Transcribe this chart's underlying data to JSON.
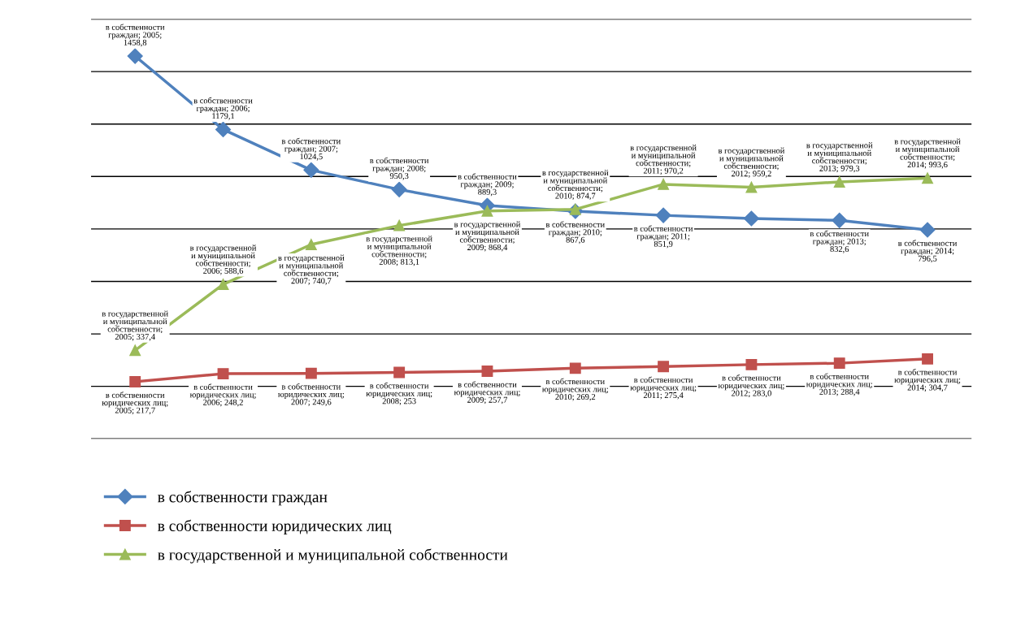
{
  "chart_data": {
    "type": "line",
    "categories": [
      null,
      null,
      null,
      null,
      null,
      null,
      null,
      null,
      null,
      null
    ],
    "ylim": [
      0,
      1600
    ],
    "yticks": [
      {
        "value": 0,
        "label": null
      },
      {
        "value": 200,
        "label": null
      },
      {
        "value": 400,
        "label": null
      },
      {
        "value": 600,
        "label": null
      },
      {
        "value": 800,
        "label": null
      },
      {
        "value": 1000,
        "label": null
      },
      {
        "value": 1200,
        "label": null
      },
      {
        "value": 1400,
        "label": null
      },
      {
        "value": 1600,
        "label": null
      }
    ],
    "grid": "y",
    "legend": "bottom left",
    "series": [
      {
        "name": "в собственности граждан",
        "color": "#4f81bd",
        "marker": "diamond",
        "values": [
          1458.8,
          1179.1,
          1024.5,
          950.3,
          889.3,
          867.6,
          851.9,
          840,
          832.6,
          796.5
        ],
        "value_labels": [
          "в собственности граждан; 2005; 1458,8",
          "в собственности граждан; 2006; 1179,1",
          "в собственности граждан; 2007; 1024,5",
          "в собственности граждан; 2008; 950,3",
          "в собственности граждан; 2009; 889,3",
          "в собственности граждан; 2010; 867,6",
          "в собственности граждан; 2011; 851,9",
          null,
          "в собственности граждан; 2013; 832,6",
          "в собственности граждан; 2014; 796,5"
        ]
      },
      {
        "name": "в собственности юридических лиц",
        "color": "#c0504d",
        "marker": "square",
        "values": [
          217.7,
          248.2,
          249.6,
          253,
          257.7,
          269.2,
          275.4,
          283,
          288.4,
          304.7
        ],
        "value_labels": [
          "в собственности юридических лиц; 2005; 217,7",
          "в собственности юридических лиц; 2006; 248,2",
          "в собственности юридических лиц; 2007; 249,6",
          "в собственности юридических лиц; 2008; 253",
          "в собственности юридических лиц; 2009; 257,7",
          "в собственности юридических лиц; 2010; 269,2",
          "в собственности юридических лиц; 2011; 275,4",
          "в собственности юридических лиц; 2012; 283,0",
          "в собственности юридических лиц; 2013; 288,4",
          "в собственности юридических лиц; 2014; 304,7"
        ]
      },
      {
        "name": "в государственной и муниципальной собственности",
        "color": "#9bbb59",
        "marker": "triangle",
        "values": [
          337.4,
          588.6,
          740.7,
          813.1,
          868.4,
          874.7,
          970.2,
          959.2,
          979.3,
          993.6
        ],
        "value_labels": [
          "в государственной и муниципальной собственности; 2005; 337,4",
          "в государственной и муниципальной собственности; 2006; 588,6",
          "в государственной и муниципальной собственности; 2007; 740,7",
          "в государственной и муниципальной собственности; 2008; 813,1",
          "в государственной и муниципальной собственности; 2009; 868,4",
          "в государственной и муниципальной собственности; 2010; 874,7",
          "в государственной и муниципальной собственности; 2011; 970,2",
          "в государственной и муниципальной собственности; 2012; 959,2",
          "в государственной и муниципальной собственности; 2013; 979,3",
          "в государственной и муниципальной собственности; 2014; 993,6"
        ]
      }
    ]
  }
}
